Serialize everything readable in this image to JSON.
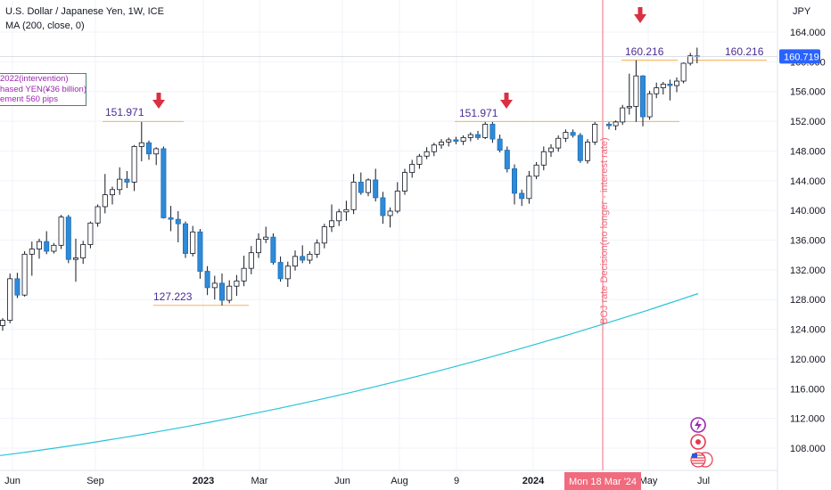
{
  "header": {
    "title": "U.S. Dollar / Japanese Yen, 1W, ICE",
    "indicator": "MA (200, close, 0)"
  },
  "axis": {
    "currency": "JPY",
    "y_ticks": [
      "164.000",
      "160.000",
      "156.000",
      "152.000",
      "148.000",
      "144.000",
      "140.000",
      "136.000",
      "132.000",
      "128.000",
      "124.000",
      "120.000",
      "116.000",
      "112.000",
      "108.000"
    ],
    "x_ticks": [
      "Jun",
      "Sep",
      "2023",
      "Mar",
      "Jun",
      "Aug",
      "9",
      "2024",
      "May",
      "Jul"
    ],
    "crosshair_date": "Mon 18 Mar '24",
    "last_price": "160.719"
  },
  "annotations": {
    "note_lines": [
      "2022(intervention)",
      "hased YEN(¥36 billion)",
      "ement 560 pips"
    ],
    "levels": {
      "high_2022": "151.971",
      "low_2023": "127.223",
      "high_2023": "151.971",
      "high_2024_a": "160.216",
      "high_2024_b": "160.216"
    },
    "vertical_note": "BOJ rate Decision(no longer - interest rate)"
  },
  "colors": {
    "up": "#ffffff",
    "up_border": "#131722",
    "down": "#2f8ad8",
    "ma": "#27c4d6",
    "level_line": "#f2b35d",
    "arrow": "#d93042",
    "crosshair": "#f06b7d",
    "price_tag": "#2962ff",
    "purple_text": "#4a2d94"
  },
  "chart_data": {
    "type": "candlestick",
    "ylim": [
      105,
      166
    ],
    "y_scale": "linear",
    "weeks": 82,
    "ohlc": [
      [
        124.5,
        125.5,
        123.8,
        125.2
      ],
      [
        125.2,
        131.5,
        124.8,
        130.8
      ],
      [
        130.8,
        131.6,
        128.2,
        128.6
      ],
      [
        128.6,
        134.5,
        128.4,
        134.1
      ],
      [
        134.1,
        135.8,
        131.2,
        134.8
      ],
      [
        134.8,
        136.2,
        133.5,
        135.8
      ],
      [
        135.8,
        137.2,
        134.1,
        134.5
      ],
      [
        134.5,
        135.6,
        134.2,
        135.3
      ],
      [
        135.3,
        139.4,
        134.8,
        139.1
      ],
      [
        139.1,
        139.4,
        132.9,
        133.4
      ],
      [
        133.4,
        136.2,
        130.4,
        133.6
      ],
      [
        133.6,
        135.9,
        132.8,
        135.4
      ],
      [
        135.4,
        138.5,
        134.9,
        138.3
      ],
      [
        138.3,
        140.8,
        137.8,
        140.5
      ],
      [
        140.5,
        144.9,
        139.6,
        142.1
      ],
      [
        142.1,
        143.2,
        140.8,
        142.8
      ],
      [
        142.8,
        145.8,
        142.1,
        144.2
      ],
      [
        144.2,
        145.3,
        143.0,
        143.8
      ],
      [
        143.8,
        148.8,
        142.6,
        148.6
      ],
      [
        148.6,
        151.9,
        146.6,
        149.1
      ],
      [
        149.1,
        149.4,
        146.8,
        147.6
      ],
      [
        147.6,
        148.5,
        146.1,
        148.3
      ],
      [
        148.3,
        148.6,
        138.9,
        139.0
      ],
      [
        139.0,
        140.6,
        137.2,
        138.8
      ],
      [
        138.8,
        139.9,
        135.7,
        138.2
      ],
      [
        138.2,
        138.5,
        133.6,
        134.2
      ],
      [
        134.2,
        137.9,
        133.8,
        137.1
      ],
      [
        137.1,
        137.5,
        130.8,
        131.8
      ],
      [
        131.8,
        132.5,
        128.6,
        129.6
      ],
      [
        129.6,
        131.2,
        128.0,
        130.2
      ],
      [
        130.2,
        131.5,
        127.2,
        127.9
      ],
      [
        127.9,
        130.6,
        127.5,
        129.8
      ],
      [
        129.8,
        131.3,
        128.5,
        130.5
      ],
      [
        130.5,
        133.9,
        129.8,
        132.2
      ],
      [
        132.2,
        135.2,
        131.4,
        134.3
      ],
      [
        134.3,
        136.9,
        133.6,
        136.1
      ],
      [
        136.1,
        137.8,
        135.6,
        136.4
      ],
      [
        136.4,
        136.9,
        132.7,
        133.0
      ],
      [
        133.0,
        133.8,
        130.4,
        130.8
      ],
      [
        130.8,
        133.1,
        129.7,
        132.5
      ],
      [
        132.5,
        134.6,
        131.9,
        133.8
      ],
      [
        133.8,
        135.3,
        132.9,
        133.3
      ],
      [
        133.3,
        134.5,
        132.8,
        134.1
      ],
      [
        134.1,
        136.1,
        133.6,
        135.6
      ],
      [
        135.6,
        138.2,
        134.9,
        137.8
      ],
      [
        137.8,
        140.8,
        137.1,
        138.6
      ],
      [
        138.6,
        140.2,
        137.9,
        139.8
      ],
      [
        139.8,
        141.3,
        138.6,
        140.1
      ],
      [
        140.1,
        144.9,
        139.5,
        143.8
      ],
      [
        143.8,
        145.1,
        142.1,
        142.4
      ],
      [
        142.4,
        144.3,
        141.9,
        144.1
      ],
      [
        144.1,
        145.6,
        141.2,
        141.7
      ],
      [
        141.7,
        142.5,
        138.2,
        139.3
      ],
      [
        139.3,
        140.4,
        137.7,
        139.9
      ],
      [
        139.9,
        143.8,
        139.6,
        142.6
      ],
      [
        142.6,
        145.6,
        142.1,
        145.1
      ],
      [
        145.1,
        146.8,
        144.4,
        146.2
      ],
      [
        146.2,
        147.6,
        145.6,
        147.3
      ],
      [
        147.3,
        148.5,
        146.9,
        147.9
      ],
      [
        147.9,
        149.1,
        147.3,
        148.8
      ],
      [
        148.8,
        149.6,
        148.3,
        149.2
      ],
      [
        149.2,
        149.8,
        148.6,
        149.5
      ],
      [
        149.5,
        149.9,
        148.9,
        149.3
      ],
      [
        149.3,
        150.1,
        148.8,
        149.8
      ],
      [
        149.8,
        150.5,
        149.3,
        150.2
      ],
      [
        150.2,
        150.7,
        149.5,
        149.8
      ],
      [
        149.8,
        151.9,
        149.6,
        151.6
      ],
      [
        151.6,
        151.9,
        149.1,
        149.6
      ],
      [
        149.6,
        150.2,
        147.8,
        148.1
      ],
      [
        148.1,
        148.6,
        145.1,
        145.6
      ],
      [
        145.6,
        146.2,
        140.8,
        142.3
      ],
      [
        142.3,
        142.8,
        140.6,
        141.6
      ],
      [
        141.6,
        145.3,
        140.9,
        144.6
      ],
      [
        144.6,
        146.5,
        144.2,
        146.1
      ],
      [
        146.1,
        148.6,
        145.4,
        147.9
      ],
      [
        147.9,
        148.9,
        147.2,
        148.4
      ],
      [
        148.4,
        150.1,
        147.9,
        149.7
      ],
      [
        149.7,
        150.9,
        149.2,
        150.5
      ],
      [
        150.5,
        150.9,
        149.8,
        150.1
      ],
      [
        150.1,
        150.4,
        146.4,
        146.7
      ],
      [
        146.7,
        149.6,
        146.3,
        149.2
      ],
      [
        149.2,
        151.9,
        148.8,
        151.6
      ]
    ],
    "ohlc_2024b": [
      [
        151.6,
        151.9,
        150.9,
        151.4
      ],
      [
        151.4,
        152.1,
        150.8,
        151.9
      ],
      [
        151.9,
        154.2,
        151.5,
        153.8
      ],
      [
        153.8,
        158.4,
        152.9,
        154.0
      ],
      [
        154.0,
        160.2,
        151.9,
        158.1
      ],
      [
        158.1,
        158.2,
        151.3,
        152.6
      ],
      [
        152.6,
        156.1,
        152.2,
        155.7
      ],
      [
        155.7,
        157.2,
        155.1,
        156.5
      ],
      [
        156.5,
        157.3,
        155.6,
        157.0
      ],
      [
        157.0,
        157.6,
        154.8,
        156.8
      ],
      [
        156.8,
        157.9,
        155.9,
        157.4
      ],
      [
        157.4,
        159.9,
        157.1,
        159.8
      ],
      [
        159.8,
        161.2,
        159.5,
        160.8
      ],
      [
        160.8,
        161.9,
        159.8,
        160.7
      ]
    ],
    "ma_200": {
      "x_start": "Jun 2022",
      "x_end": "Jul 2024",
      "y_start": 107.0,
      "y_end": 128.8
    },
    "levels": [
      {
        "label": "151.971",
        "value": 151.971
      },
      {
        "label": "127.223",
        "value": 127.223
      },
      {
        "label": "151.971",
        "value": 151.971
      },
      {
        "label": "160.216",
        "value": 160.216
      },
      {
        "label": "160.216",
        "value": 160.216
      }
    ],
    "last_price": 160.719
  }
}
